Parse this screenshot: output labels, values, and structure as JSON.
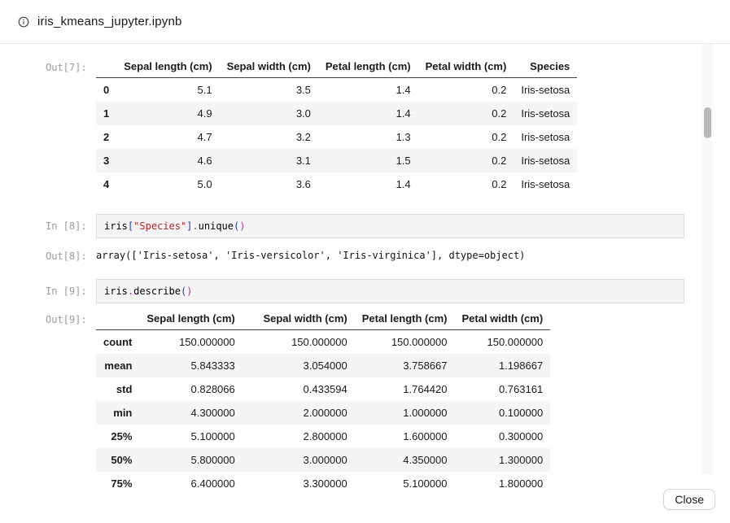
{
  "modal": {
    "title": "iris_kmeans_jupyter.ipynb",
    "close_label": "Close"
  },
  "colors": {
    "code_plain": "#000000",
    "code_string": "#ba2121",
    "code_bracket": "#2136d4",
    "code_operator": "#b32cc7",
    "row_stripe": "#f5f5f5",
    "prompt_gray": "#9b9b9b"
  },
  "notebook": {
    "cells": [
      {
        "prompt": "Out[7]:",
        "table": {
          "headers": [
            "",
            "Sepal length (cm)",
            "Sepal width (cm)",
            "Petal length (cm)",
            "Petal width (cm)",
            "Species"
          ],
          "rows": [
            [
              "0",
              "5.1",
              "3.5",
              "1.4",
              "0.2",
              "Iris-setosa"
            ],
            [
              "1",
              "4.9",
              "3.0",
              "1.4",
              "0.2",
              "Iris-setosa"
            ],
            [
              "2",
              "4.7",
              "3.2",
              "1.3",
              "0.2",
              "Iris-setosa"
            ],
            [
              "3",
              "4.6",
              "3.1",
              "1.5",
              "0.2",
              "Iris-setosa"
            ],
            [
              "4",
              "5.0",
              "3.6",
              "1.4",
              "0.2",
              "Iris-setosa"
            ]
          ]
        }
      },
      {
        "prompt": "In [8]:",
        "code": [
          {
            "text": "iris",
            "type": "plain"
          },
          {
            "text": "[",
            "type": "bracket"
          },
          {
            "text": "\"Species\"",
            "type": "string"
          },
          {
            "text": "]",
            "type": "bracket"
          },
          {
            "text": ".",
            "type": "operator"
          },
          {
            "text": "unique",
            "type": "plain"
          },
          {
            "text": "(",
            "type": "bracket"
          },
          {
            "text": ")",
            "type": "operator"
          }
        ]
      },
      {
        "prompt": "Out[8]:",
        "text": "array(['Iris-setosa', 'Iris-versicolor', 'Iris-virginica'], dtype=object)"
      },
      {
        "prompt": "In [9]:",
        "code": [
          {
            "text": "iris",
            "type": "plain"
          },
          {
            "text": ".",
            "type": "operator"
          },
          {
            "text": "describe",
            "type": "plain"
          },
          {
            "text": "(",
            "type": "bracket"
          },
          {
            "text": ")",
            "type": "operator"
          }
        ]
      },
      {
        "prompt": "Out[9]:",
        "table": {
          "headers": [
            "",
            "Sepal length (cm)",
            "Sepal width (cm)",
            "Petal length (cm)",
            "Petal width (cm)"
          ],
          "rows": [
            [
              "count",
              "150.000000",
              "150.000000",
              "150.000000",
              "150.000000"
            ],
            [
              "mean",
              "5.843333",
              "3.054000",
              "3.758667",
              "1.198667"
            ],
            [
              "std",
              "0.828066",
              "0.433594",
              "1.764420",
              "0.763161"
            ],
            [
              "min",
              "4.300000",
              "2.000000",
              "1.000000",
              "0.100000"
            ],
            [
              "25%",
              "5.100000",
              "2.800000",
              "1.600000",
              "0.300000"
            ],
            [
              "50%",
              "5.800000",
              "3.000000",
              "4.350000",
              "1.300000"
            ],
            [
              "75%",
              "6.400000",
              "3.300000",
              "5.100000",
              "1.800000"
            ]
          ]
        }
      }
    ]
  }
}
